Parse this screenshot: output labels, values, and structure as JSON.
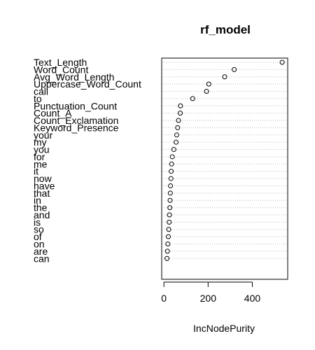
{
  "chart_data": {
    "type": "scatter",
    "title": "rf_model",
    "xlabel": "IncNodePurity",
    "ylabel": "",
    "xlim": [
      -10,
      560
    ],
    "xticks": [
      0,
      200,
      400
    ],
    "grid": "dotted horizontal lines per variable",
    "marker": "open-circle",
    "colors": {
      "point": "#000000",
      "grid": "#bebebe",
      "frame": "#000000"
    },
    "categories": [
      "Text_Length",
      "Word_Count",
      "Avg_Word_Length",
      "Uppercase_Word_Count",
      "call",
      "to",
      "Punctuation_Count",
      "Count_A",
      "Count_Exclamation",
      "Keyword_Presence",
      "your",
      "my",
      "you",
      "for",
      "me",
      "it",
      "now",
      "have",
      "that",
      "in",
      "the",
      "and",
      "is",
      "so",
      "of",
      "on",
      "are",
      "can"
    ],
    "values": [
      535,
      318,
      275,
      203,
      193,
      130,
      75,
      74,
      66,
      62,
      58,
      55,
      45,
      38,
      35,
      33,
      32,
      30,
      29,
      28,
      27,
      25,
      24,
      22,
      20,
      18,
      16,
      14
    ]
  }
}
